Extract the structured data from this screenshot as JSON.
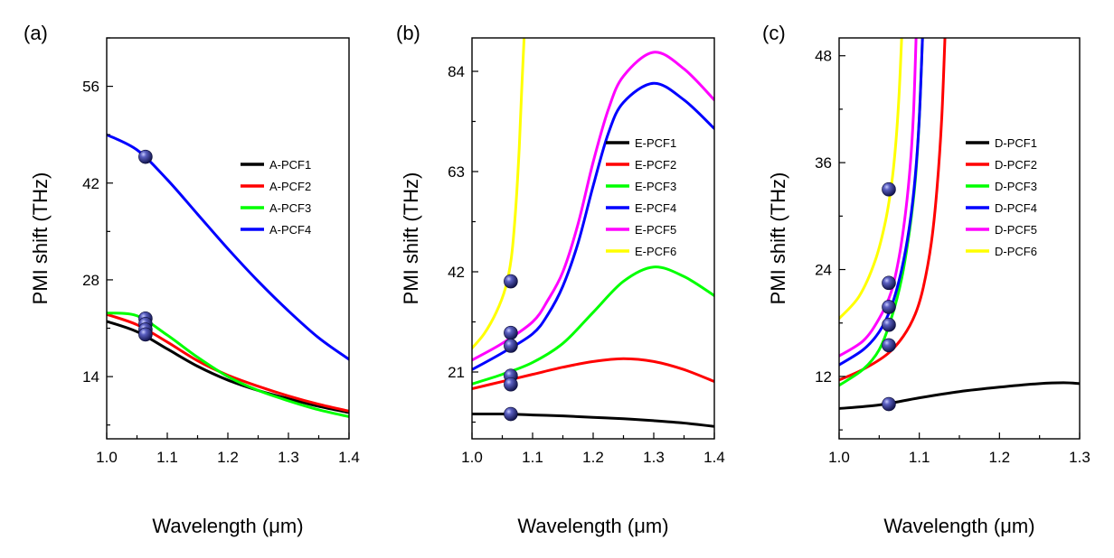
{
  "chart_data": [
    {
      "panel": "(a)",
      "type": "line",
      "xlabel": "Wavelength (μm)",
      "ylabel": "PMI shift (THz)",
      "xlim": [
        1.0,
        1.4
      ],
      "ylim": [
        5,
        63
      ],
      "xticks": [
        "1.0",
        "1.1",
        "1.2",
        "1.3",
        "1.4"
      ],
      "yticks": [
        "14",
        "28",
        "42",
        "56"
      ],
      "legend_position": "right",
      "series": [
        {
          "name": "A-PCF1",
          "color": "#000000",
          "x": [
            1.0,
            1.05,
            1.1,
            1.15,
            1.2,
            1.25,
            1.3,
            1.35,
            1.4
          ],
          "y": [
            22.0,
            20.5,
            18.0,
            15.5,
            13.5,
            12.0,
            10.8,
            9.7,
            8.8
          ]
        },
        {
          "name": "A-PCF2",
          "color": "#ff0000",
          "x": [
            1.0,
            1.05,
            1.1,
            1.15,
            1.2,
            1.25,
            1.3,
            1.35,
            1.4
          ],
          "y": [
            23.0,
            21.5,
            19.0,
            16.3,
            14.2,
            12.6,
            11.2,
            10.0,
            9.0
          ]
        },
        {
          "name": "A-PCF3",
          "color": "#00ff00",
          "x": [
            1.0,
            1.05,
            1.1,
            1.15,
            1.2,
            1.25,
            1.3,
            1.35,
            1.4
          ],
          "y": [
            23.2,
            22.8,
            20.0,
            16.8,
            14.0,
            12.0,
            10.5,
            9.2,
            8.2
          ]
        },
        {
          "name": "A-PCF4",
          "color": "#0000ff",
          "x": [
            1.0,
            1.05,
            1.1,
            1.15,
            1.2,
            1.25,
            1.3,
            1.35,
            1.4
          ],
          "y": [
            49.0,
            46.8,
            42.5,
            37.5,
            32.5,
            27.8,
            23.5,
            19.6,
            16.5
          ]
        }
      ],
      "markers": [
        {
          "x": 1.064,
          "y": 45.8
        },
        {
          "x": 1.064,
          "y": 22.4
        },
        {
          "x": 1.064,
          "y": 21.6
        },
        {
          "x": 1.064,
          "y": 20.8
        },
        {
          "x": 1.064,
          "y": 20.1
        }
      ]
    },
    {
      "panel": "(b)",
      "type": "line",
      "xlabel": "Wavelength (μm)",
      "ylabel": "PMI shift (THz)",
      "xlim": [
        1.0,
        1.4
      ],
      "ylim": [
        7,
        91
      ],
      "xticks": [
        "1.0",
        "1.1",
        "1.2",
        "1.3",
        "1.4"
      ],
      "yticks": [
        "21",
        "42",
        "63",
        "84"
      ],
      "legend_position": "right",
      "series": [
        {
          "name": "E-PCF1",
          "color": "#000000",
          "x": [
            1.0,
            1.05,
            1.1,
            1.15,
            1.2,
            1.25,
            1.3,
            1.35,
            1.4
          ],
          "y": [
            12.2,
            12.2,
            12.0,
            11.8,
            11.5,
            11.2,
            10.8,
            10.3,
            9.6
          ]
        },
        {
          "name": "E-PCF2",
          "color": "#ff0000",
          "x": [
            1.0,
            1.05,
            1.1,
            1.15,
            1.2,
            1.25,
            1.3,
            1.35,
            1.4
          ],
          "y": [
            17.5,
            19.0,
            20.5,
            22.0,
            23.2,
            23.8,
            23.2,
            21.5,
            19.0
          ]
        },
        {
          "name": "E-PCF3",
          "color": "#00ff00",
          "x": [
            1.0,
            1.05,
            1.1,
            1.15,
            1.2,
            1.25,
            1.3,
            1.35,
            1.4
          ],
          "y": [
            18.5,
            20.5,
            23.0,
            27.0,
            33.5,
            40.0,
            43.0,
            41.0,
            37.0
          ]
        },
        {
          "name": "E-PCF4",
          "color": "#0000ff",
          "x": [
            1.0,
            1.05,
            1.1,
            1.125,
            1.15,
            1.175,
            1.2,
            1.225,
            1.25,
            1.3,
            1.35,
            1.4
          ],
          "y": [
            21.5,
            25.0,
            29.0,
            33.0,
            39.0,
            48.0,
            60.0,
            71.0,
            77.5,
            81.5,
            78.0,
            72.0
          ]
        },
        {
          "name": "E-PCF5",
          "color": "#ff00ff",
          "x": [
            1.0,
            1.05,
            1.1,
            1.125,
            1.15,
            1.175,
            1.2,
            1.225,
            1.25,
            1.3,
            1.35,
            1.4
          ],
          "y": [
            23.5,
            27.0,
            31.5,
            36.0,
            42.0,
            52.0,
            65.0,
            76.0,
            83.0,
            88.0,
            84.5,
            78.0
          ]
        },
        {
          "name": "E-PCF6",
          "color": "#ffff00",
          "x": [
            1.0,
            1.02,
            1.04,
            1.055,
            1.065,
            1.072,
            1.078,
            1.082,
            1.086
          ],
          "y": [
            26.0,
            29.0,
            33.5,
            38.5,
            45.0,
            55.0,
            68.0,
            80.0,
            91.0
          ]
        }
      ],
      "markers": [
        {
          "x": 1.064,
          "y": 40.0
        },
        {
          "x": 1.064,
          "y": 29.2
        },
        {
          "x": 1.064,
          "y": 26.5
        },
        {
          "x": 1.064,
          "y": 20.2
        },
        {
          "x": 1.064,
          "y": 18.4
        },
        {
          "x": 1.064,
          "y": 12.2
        }
      ]
    },
    {
      "panel": "(c)",
      "type": "line",
      "xlabel": "Wavelength (μm)",
      "ylabel": "PMI shift (THz)",
      "xlim": [
        1.0,
        1.3
      ],
      "ylim": [
        5,
        50
      ],
      "xticks": [
        "1.0",
        "1.1",
        "1.2",
        "1.3"
      ],
      "yticks": [
        "12",
        "24",
        "36",
        "48"
      ],
      "legend_position": "right",
      "series": [
        {
          "name": "D-PCF1",
          "color": "#000000",
          "x": [
            1.0,
            1.05,
            1.1,
            1.15,
            1.2,
            1.25,
            1.28,
            1.3
          ],
          "y": [
            8.4,
            8.8,
            9.6,
            10.3,
            10.8,
            11.2,
            11.3,
            11.2
          ]
        },
        {
          "name": "D-PCF2",
          "color": "#ff0000",
          "x": [
            1.0,
            1.03,
            1.06,
            1.08,
            1.095,
            1.105,
            1.115,
            1.122,
            1.128,
            1.132
          ],
          "y": [
            11.6,
            12.8,
            14.5,
            16.5,
            19.0,
            22.0,
            27.0,
            33.0,
            41.0,
            50.0
          ]
        },
        {
          "name": "D-PCF3",
          "color": "#00ff00",
          "x": [
            1.0,
            1.03,
            1.05,
            1.065,
            1.078,
            1.088,
            1.095,
            1.1,
            1.104
          ],
          "y": [
            11.0,
            12.8,
            15.0,
            18.5,
            23.0,
            28.5,
            34.0,
            41.0,
            50.0
          ]
        },
        {
          "name": "D-PCF4",
          "color": "#0000ff",
          "x": [
            1.0,
            1.03,
            1.05,
            1.065,
            1.078,
            1.088,
            1.095,
            1.1,
            1.104
          ],
          "y": [
            13.3,
            15.0,
            17.0,
            19.8,
            24.0,
            29.0,
            34.5,
            41.0,
            50.0
          ]
        },
        {
          "name": "D-PCF5",
          "color": "#ff00ff",
          "x": [
            1.0,
            1.03,
            1.05,
            1.065,
            1.075,
            1.083,
            1.089,
            1.093,
            1.096
          ],
          "y": [
            14.3,
            16.0,
            18.5,
            21.5,
            25.5,
            30.5,
            36.0,
            42.0,
            50.0
          ]
        },
        {
          "name": "D-PCF6",
          "color": "#ffff00",
          "x": [
            1.0,
            1.025,
            1.045,
            1.058,
            1.066,
            1.071,
            1.075,
            1.078
          ],
          "y": [
            18.5,
            21.0,
            25.0,
            29.5,
            34.0,
            38.5,
            44.0,
            50.0
          ]
        }
      ],
      "markers": [
        {
          "x": 1.062,
          "y": 33.0
        },
        {
          "x": 1.062,
          "y": 22.5
        },
        {
          "x": 1.062,
          "y": 19.8
        },
        {
          "x": 1.062,
          "y": 17.8
        },
        {
          "x": 1.062,
          "y": 15.5
        },
        {
          "x": 1.062,
          "y": 8.9
        }
      ]
    }
  ]
}
